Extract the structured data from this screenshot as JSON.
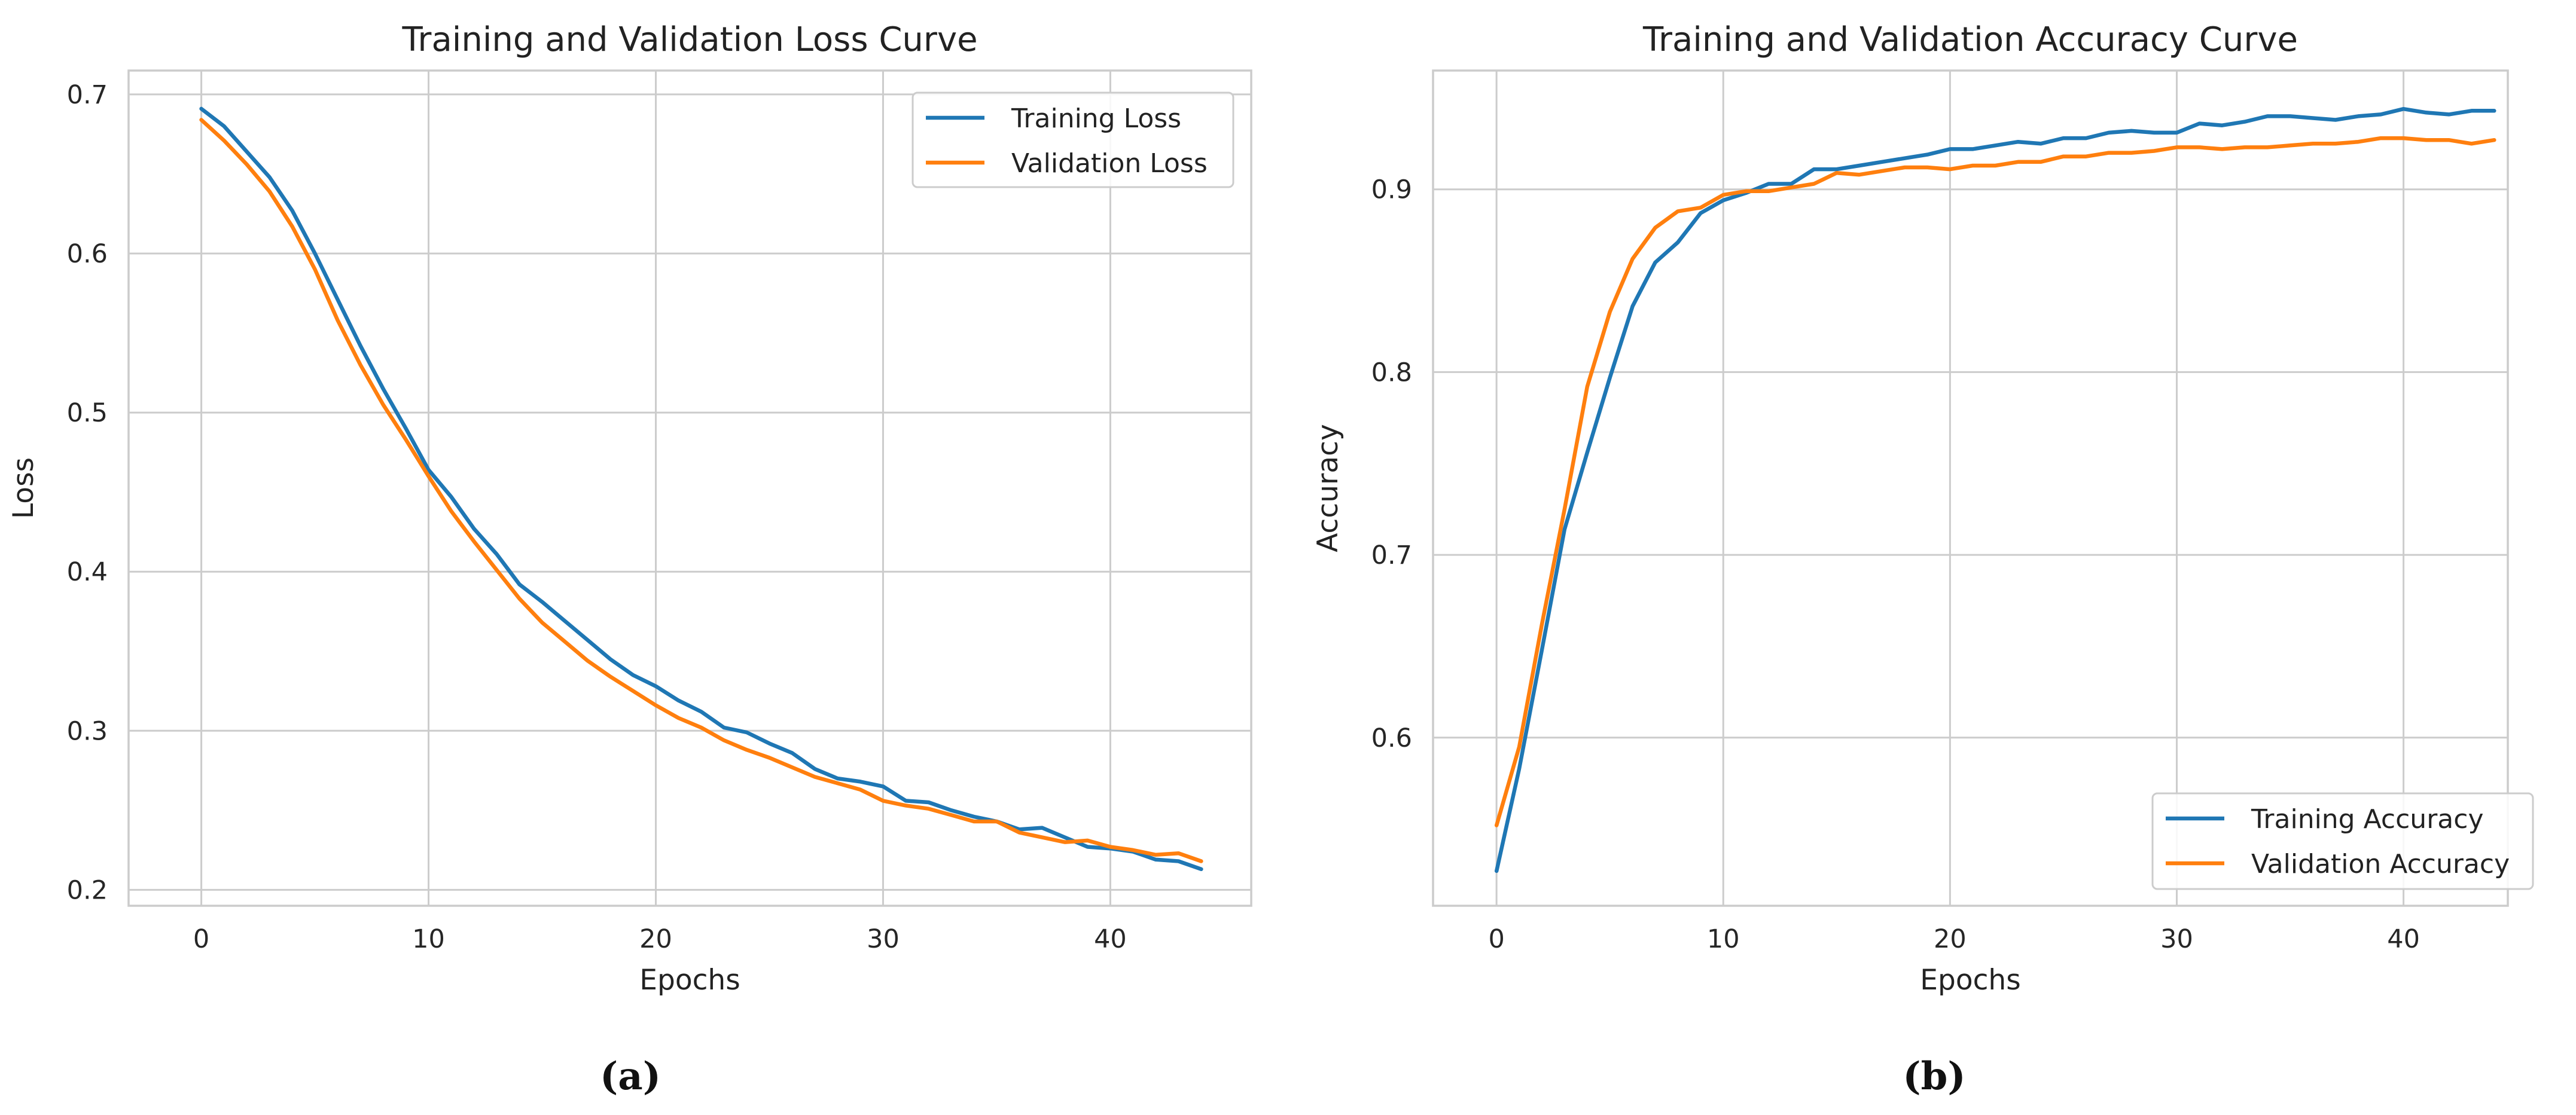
{
  "chart_data": [
    {
      "type": "line",
      "panel_label": "(a)",
      "title": "Training and Validation Loss Curve",
      "xlabel": "Epochs",
      "ylabel": "Loss",
      "xlim": [
        -3.2,
        46.2
      ],
      "ylim": [
        0.19,
        0.715
      ],
      "xticks": [
        0,
        10,
        20,
        30,
        40
      ],
      "yticks": [
        0.2,
        0.3,
        0.4,
        0.5,
        0.6,
        0.7
      ],
      "ytick_labels": [
        "0.2",
        "0.3",
        "0.4",
        "0.5",
        "0.6",
        "0.7"
      ],
      "grid": true,
      "legend": "top-right",
      "x": [
        0,
        1,
        2,
        3,
        4,
        5,
        6,
        7,
        8,
        9,
        10,
        11,
        12,
        13,
        14,
        15,
        16,
        17,
        18,
        19,
        20,
        21,
        22,
        23,
        24,
        25,
        26,
        27,
        28,
        29,
        30,
        31,
        32,
        33,
        34,
        35,
        36,
        37,
        38,
        39,
        40,
        41,
        42,
        43,
        44
      ],
      "series": [
        {
          "name": "Training Loss",
          "color": "#1f77b4",
          "values": [
            0.691,
            0.68,
            0.664,
            0.648,
            0.627,
            0.6,
            0.571,
            0.542,
            0.515,
            0.49,
            0.464,
            0.447,
            0.427,
            0.411,
            0.392,
            0.381,
            0.369,
            0.357,
            0.345,
            0.335,
            0.328,
            0.319,
            0.312,
            0.302,
            0.299,
            0.292,
            0.286,
            0.276,
            0.27,
            0.268,
            0.265,
            0.256,
            0.255,
            0.25,
            0.246,
            0.243,
            0.238,
            0.239,
            0.233,
            0.227,
            0.226,
            0.224,
            0.219,
            0.218,
            0.213
          ]
        },
        {
          "name": "Validation Loss",
          "color": "#ff7f0e",
          "values": [
            0.684,
            0.671,
            0.656,
            0.639,
            0.617,
            0.59,
            0.558,
            0.53,
            0.505,
            0.483,
            0.46,
            0.438,
            0.419,
            0.401,
            0.383,
            0.368,
            0.356,
            0.344,
            0.334,
            0.325,
            0.316,
            0.308,
            0.302,
            0.294,
            0.288,
            0.283,
            0.277,
            0.271,
            0.267,
            0.263,
            0.256,
            0.253,
            0.251,
            0.247,
            0.243,
            0.243,
            0.236,
            0.233,
            0.23,
            0.231,
            0.227,
            0.225,
            0.222,
            0.223,
            0.218
          ]
        }
      ]
    },
    {
      "type": "line",
      "panel_label": "(b)",
      "title": "Training and Validation Accuracy Curve",
      "xlabel": "Epochs",
      "ylabel": "Accuracy",
      "xlim": [
        -2.8,
        44.6
      ],
      "ylim": [
        0.508,
        0.965
      ],
      "xticks": [
        0,
        10,
        20,
        30,
        40
      ],
      "yticks": [
        0.6,
        0.7,
        0.8,
        0.9
      ],
      "ytick_labels": [
        "0.6",
        "0.7",
        "0.8",
        "0.9"
      ],
      "grid": true,
      "legend": "bottom-right",
      "x": [
        0,
        1,
        2,
        3,
        4,
        5,
        6,
        7,
        8,
        9,
        10,
        11,
        12,
        13,
        14,
        15,
        16,
        17,
        18,
        19,
        20,
        21,
        22,
        23,
        24,
        25,
        26,
        27,
        28,
        29,
        30,
        31,
        32,
        33,
        34,
        35,
        36,
        37,
        38,
        39,
        40,
        41,
        42,
        43,
        44
      ],
      "series": [
        {
          "name": "Training Accuracy",
          "color": "#1f77b4",
          "values": [
            0.527,
            0.583,
            0.648,
            0.714,
            0.756,
            0.797,
            0.836,
            0.86,
            0.871,
            0.887,
            0.894,
            0.898,
            0.903,
            0.903,
            0.911,
            0.911,
            0.913,
            0.915,
            0.917,
            0.919,
            0.922,
            0.922,
            0.924,
            0.926,
            0.925,
            0.928,
            0.928,
            0.931,
            0.932,
            0.931,
            0.931,
            0.936,
            0.935,
            0.937,
            0.94,
            0.94,
            0.939,
            0.938,
            0.94,
            0.941,
            0.944,
            0.942,
            0.941,
            0.943,
            0.943
          ]
        },
        {
          "name": "Validation Accuracy",
          "color": "#ff7f0e",
          "values": [
            0.552,
            0.595,
            0.662,
            0.725,
            0.792,
            0.833,
            0.862,
            0.879,
            0.888,
            0.89,
            0.897,
            0.899,
            0.899,
            0.901,
            0.903,
            0.909,
            0.908,
            0.91,
            0.912,
            0.912,
            0.911,
            0.913,
            0.913,
            0.915,
            0.915,
            0.918,
            0.918,
            0.92,
            0.92,
            0.921,
            0.923,
            0.923,
            0.922,
            0.923,
            0.923,
            0.924,
            0.925,
            0.925,
            0.926,
            0.928,
            0.928,
            0.927,
            0.927,
            0.925,
            0.927
          ]
        }
      ]
    }
  ]
}
